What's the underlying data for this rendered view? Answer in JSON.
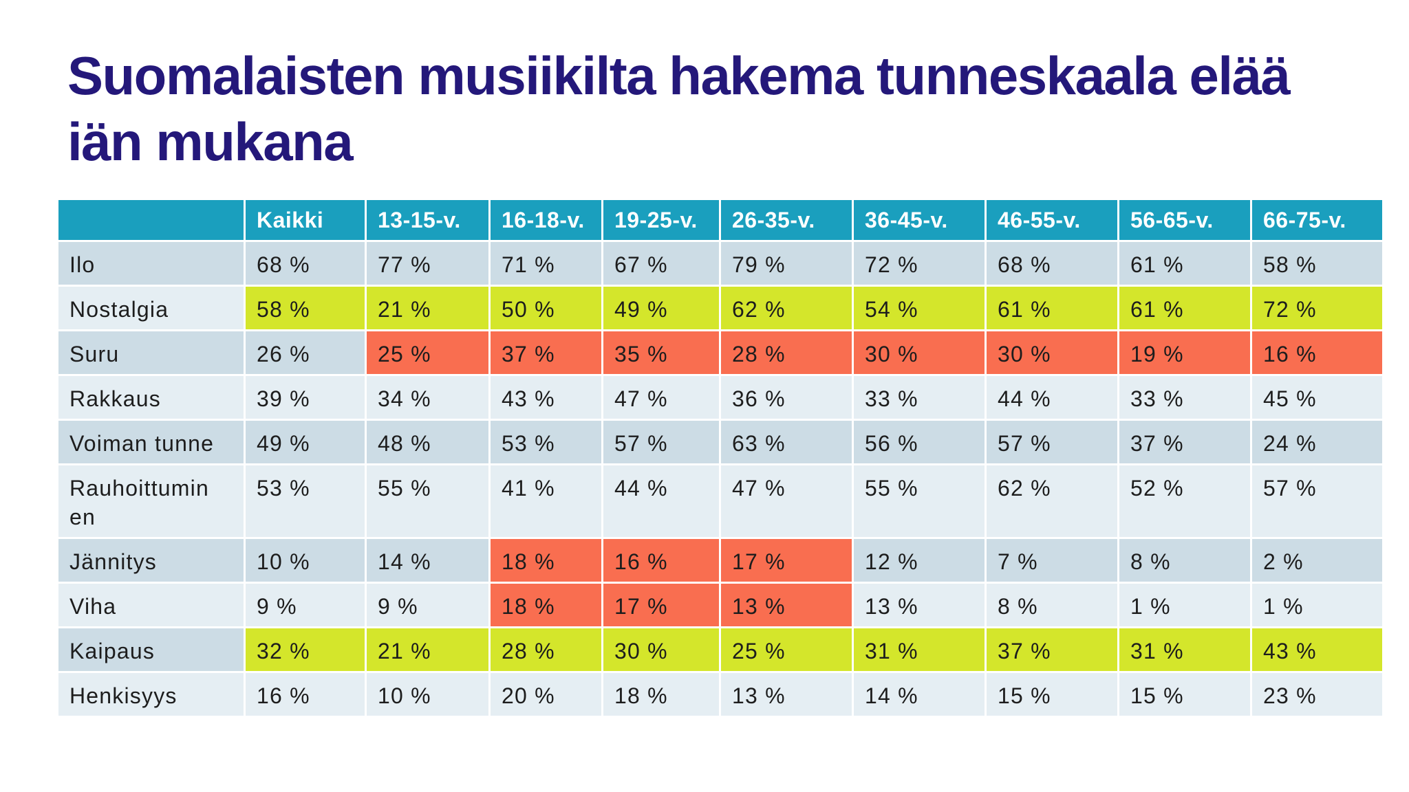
{
  "title": "Suomalaisten musiikilta hakema tunneskaala elää iän mukana",
  "table": {
    "header_color": "#1a9fbe",
    "row_colors": [
      "#ccdce5",
      "#e5eef3"
    ],
    "header": [
      "Kaikki",
      "13-15-v.",
      "16-18-v.",
      "19-25-v.",
      "26-35-v.",
      "36-45-v.",
      "46-55-v.",
      "56-65-v.",
      "66-75-v."
    ],
    "rows": [
      {
        "label": "Ilo",
        "cells": [
          "68 %",
          "77 %",
          "71 %",
          "67 %",
          "79 %",
          "72 %",
          "68 %",
          "61 %",
          "58 %"
        ]
      },
      {
        "label": "Nostalgia",
        "cells": [
          "58 %",
          "21 %",
          "50 %",
          "49 %",
          "62 %",
          "54 %",
          "61 %",
          "61 %",
          "72 %"
        ],
        "highlight": {
          "color": "#d4e62b",
          "columns": [
            0,
            1,
            2,
            3,
            4,
            5,
            6,
            7,
            8
          ]
        }
      },
      {
        "label": "Suru",
        "cells": [
          "26 %",
          "25 %",
          "37 %",
          "35 %",
          "28 %",
          "30 %",
          "30 %",
          "19 %",
          "16 %"
        ],
        "highlight": {
          "color": "#f96e50",
          "columns": [
            1,
            2,
            3,
            4,
            5,
            6,
            7,
            8
          ]
        }
      },
      {
        "label": "Rakkaus",
        "cells": [
          "39 %",
          "34 %",
          "43 %",
          "47 %",
          "36 %",
          "33 %",
          "44 %",
          "33 %",
          "45 %"
        ]
      },
      {
        "label": "Voiman tunne",
        "cells": [
          "49 %",
          "48 %",
          "53 %",
          "57 %",
          "63 %",
          "56 %",
          "57 %",
          "37 %",
          "24 %"
        ]
      },
      {
        "label": "Rauhoittuminen",
        "cells": [
          "53 %",
          "55 %",
          "41 %",
          "44 %",
          "47 %",
          "55 %",
          "62 %",
          "52 %",
          "57 %"
        ]
      },
      {
        "label": "Jännitys",
        "cells": [
          "10 %",
          "14 %",
          "18 %",
          "16 %",
          "17 %",
          "12 %",
          "7 %",
          "8 %",
          "2 %"
        ],
        "highlight": {
          "color": "#f96e50",
          "columns": [
            2,
            3,
            4
          ]
        }
      },
      {
        "label": "Viha",
        "cells": [
          "9 %",
          "9 %",
          "18 %",
          "17 %",
          "13 %",
          "13 %",
          "8 %",
          "1 %",
          "1 %"
        ],
        "highlight": {
          "color": "#f96e50",
          "columns": [
            2,
            3,
            4
          ]
        }
      },
      {
        "label": "Kaipaus",
        "cells": [
          "32 %",
          "21 %",
          "28 %",
          "30 %",
          "25 %",
          "31 %",
          "37 %",
          "31 %",
          "43 %"
        ],
        "highlight": {
          "color": "#d4e62b",
          "columns": [
            0,
            1,
            2,
            3,
            4,
            5,
            6,
            7,
            8
          ]
        }
      },
      {
        "label": "Henkisyys",
        "cells": [
          "16 %",
          "10 %",
          "20 %",
          "18 %",
          "13 %",
          "14 %",
          "15 %",
          "15 %",
          "23 %"
        ]
      }
    ]
  }
}
